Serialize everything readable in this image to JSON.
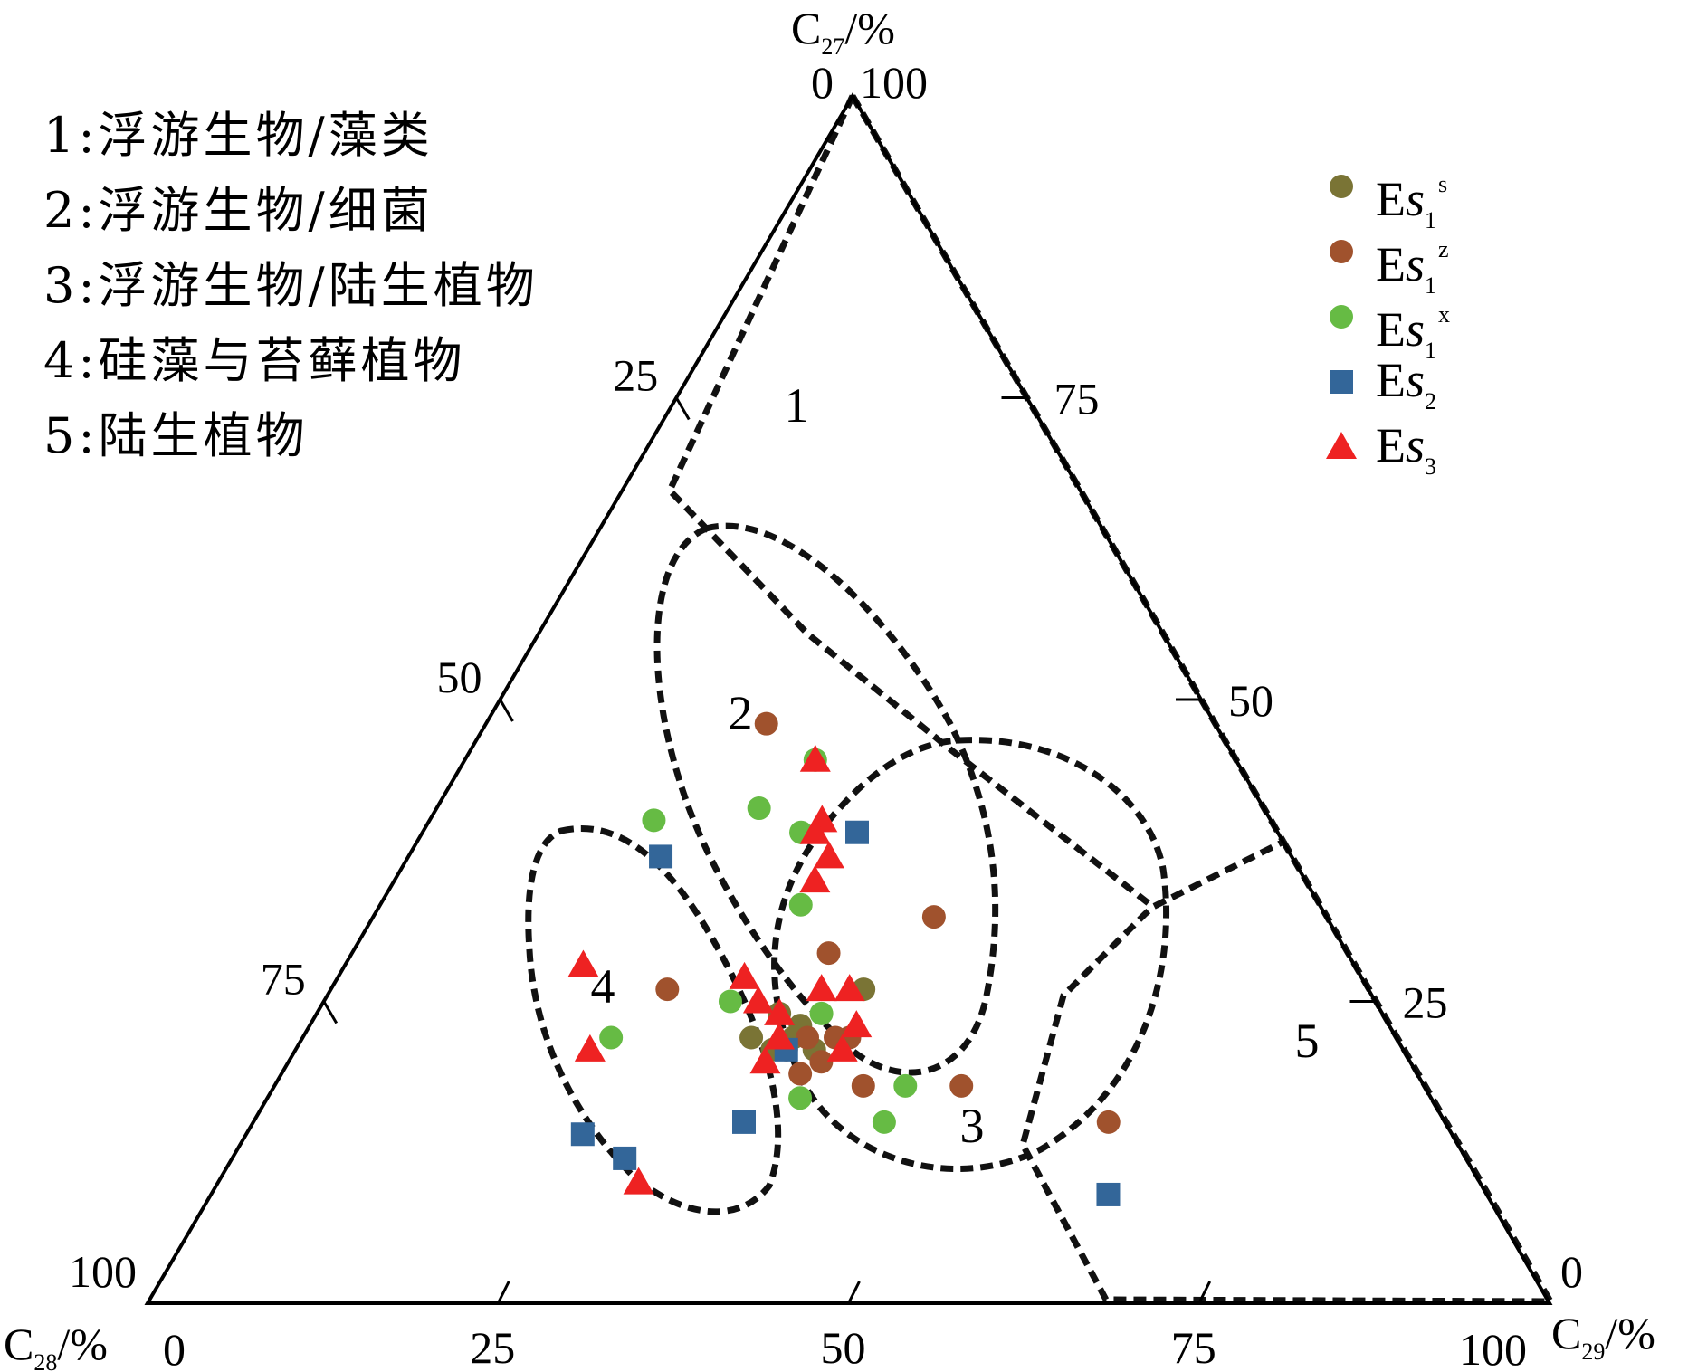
{
  "chart_data": {
    "type": "scatter",
    "subtype": "ternary",
    "axes": {
      "top": {
        "label_main": "C",
        "label_sub": "27",
        "label_unit": "/%",
        "corner_value": "100",
        "opposite_zero": "0"
      },
      "left": {
        "label_main": "C",
        "label_sub": "28",
        "label_unit": "/%",
        "corner_value": "100",
        "opposite_zero": "0"
      },
      "right": {
        "label_main": "C",
        "label_sub": "29",
        "label_unit": "/%",
        "corner_value": "100",
        "opposite_zero": "0"
      },
      "ticks": [
        "25",
        "50",
        "75"
      ]
    },
    "region_labels": [
      "1",
      "2",
      "3",
      "4",
      "5"
    ],
    "region_legend": [
      "1:浮游生物/藻类",
      "2:浮游生物/细菌",
      "3:浮游生物/陆生植物",
      "4:硅藻与苔藓植物",
      "5:陆生植物"
    ],
    "legend_position": "top-right",
    "series": [
      {
        "name": "Es1s",
        "label_main": "E",
        "label_it": "s",
        "label_sub": "1",
        "label_sup": "s",
        "marker": "circle",
        "color": "#7a7435",
        "points": [
          [
            24,
            43,
            33
          ],
          [
            22,
            46,
            32
          ],
          [
            22,
            43,
            35
          ],
          [
            21,
            45,
            34
          ],
          [
            23,
            42,
            35
          ],
          [
            21,
            42,
            37
          ],
          [
            26,
            36,
            38
          ]
        ]
      },
      {
        "name": "Es1z",
        "label_main": "E",
        "label_it": "s",
        "label_sub": "1",
        "label_sup": "z",
        "marker": "circle",
        "color": "#a0522d",
        "points": [
          [
            48,
            32,
            20
          ],
          [
            32,
            28,
            40
          ],
          [
            29,
            37,
            34
          ],
          [
            22,
            42,
            36
          ],
          [
            19,
            44,
            37
          ],
          [
            22,
            39,
            39
          ],
          [
            18,
            40,
            42
          ],
          [
            18,
            33,
            49
          ],
          [
            26,
            50,
            24
          ],
          [
            21,
            44,
            35
          ],
          [
            22,
            40,
            38
          ],
          [
            20,
            42,
            38
          ],
          [
            15,
            24,
            61
          ]
        ]
      },
      {
        "name": "Es1x",
        "label_main": "E",
        "label_it": "s",
        "label_sub": "1",
        "label_sup": "x",
        "marker": "circle",
        "color": "#66bb44",
        "points": [
          [
            45,
            30,
            25
          ],
          [
            41,
            36,
            23
          ],
          [
            39,
            34,
            27
          ],
          [
            40,
            44,
            16
          ],
          [
            33,
            37,
            30
          ],
          [
            25,
            46,
            29
          ],
          [
            22,
            56,
            22
          ],
          [
            17,
            45,
            38
          ],
          [
            18,
            37,
            45
          ],
          [
            15,
            40,
            45
          ],
          [
            24,
            40,
            36
          ]
        ]
      },
      {
        "name": "Es2",
        "label_main": "E",
        "label_it": "s",
        "label_sub": "2",
        "marker": "square",
        "color": "#336699",
        "points": [
          [
            39,
            30,
            31
          ],
          [
            37,
            45,
            18
          ],
          [
            21,
            44,
            35
          ],
          [
            15,
            50,
            35
          ],
          [
            14,
            62,
            24
          ],
          [
            12,
            60,
            28
          ],
          [
            9,
            27,
            64
          ]
        ]
      },
      {
        "name": "Es3",
        "label_main": "E",
        "label_it": "s",
        "label_sub": "3",
        "marker": "triangle",
        "color": "#ee2222",
        "points": [
          [
            45,
            30,
            25
          ],
          [
            40,
            32,
            28
          ],
          [
            39,
            33,
            28
          ],
          [
            37,
            33,
            30
          ],
          [
            35,
            35,
            30
          ],
          [
            27,
            44,
            29
          ],
          [
            26,
            39,
            35
          ],
          [
            26,
            37,
            37
          ],
          [
            24,
            43,
            33
          ],
          [
            25,
            44,
            31
          ],
          [
            22,
            44,
            34
          ],
          [
            21,
            40,
            39
          ],
          [
            23,
            38,
            39
          ],
          [
            20,
            46,
            34
          ],
          [
            28,
            55,
            17
          ],
          [
            21,
            58,
            21
          ],
          [
            10,
            60,
            30
          ]
        ]
      }
    ]
  }
}
